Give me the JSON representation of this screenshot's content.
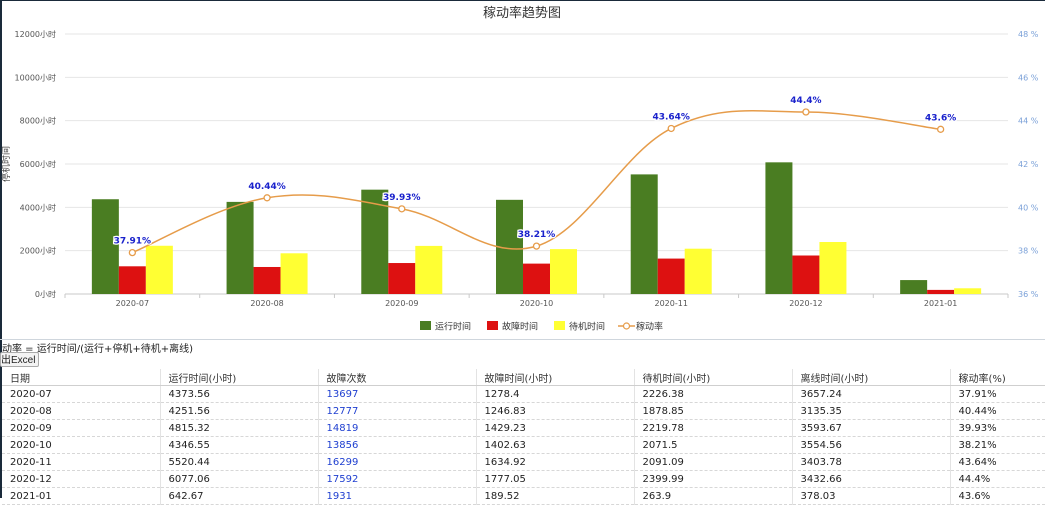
{
  "chart_data": {
    "type": "bar",
    "title": "稼动率趋势图",
    "ylabel": "停机时间",
    "ylim": [
      0,
      12000
    ],
    "y_ticks": [
      "0小时",
      "2000小时",
      "4000小时",
      "6000小时",
      "8000小时",
      "10000小时",
      "12000小时"
    ],
    "y2lim": [
      36,
      48
    ],
    "y2_ticks": [
      "36 %",
      "38 %",
      "40 %",
      "42 %",
      "44 %",
      "46 %",
      "48 %"
    ],
    "categories": [
      "2020-07",
      "2020-08",
      "2020-09",
      "2020-10",
      "2020-11",
      "2020-12",
      "2021-01"
    ],
    "series": [
      {
        "name": "运行时间",
        "kind": "bar",
        "color": "#4a7d22",
        "values": [
          4373.56,
          4251.56,
          4815.32,
          4346.55,
          5520.44,
          6077.06,
          642.67
        ]
      },
      {
        "name": "故障时间",
        "kind": "bar",
        "color": "#dd1111",
        "values": [
          1278.4,
          1246.83,
          1429.23,
          1402.63,
          1634.92,
          1777.05,
          189.52
        ]
      },
      {
        "name": "待机时间",
        "kind": "bar",
        "color": "#ffff33",
        "values": [
          2226.38,
          1878.85,
          2219.78,
          2071.5,
          2091.09,
          2399.99,
          263.9
        ]
      },
      {
        "name": "稼动率",
        "kind": "line",
        "axis": "right",
        "color": "#e69c4a",
        "values": [
          37.91,
          40.44,
          39.93,
          38.21,
          43.64,
          44.4,
          43.6
        ],
        "labels": [
          "37.91%",
          "40.44%",
          "39.93%",
          "38.21%",
          "43.64%",
          "44.4%",
          "43.6%"
        ]
      }
    ],
    "grid": true,
    "legend": "bottom-center"
  },
  "formula": "动率 = 运行时间/(运行+停机+待机+离线)",
  "export_label": "出Excel",
  "table": {
    "headers": [
      "日期",
      "运行时间(小时)",
      "故障次数",
      "故障时间(小时)",
      "待机时间(小时)",
      "离线时间(小时)",
      "稼动率(%)"
    ],
    "rows": [
      [
        "2020-07",
        "4373.56",
        "13697",
        "1278.4",
        "2226.38",
        "3657.24",
        "37.91%"
      ],
      [
        "2020-08",
        "4251.56",
        "12777",
        "1246.83",
        "1878.85",
        "3135.35",
        "40.44%"
      ],
      [
        "2020-09",
        "4815.32",
        "14819",
        "1429.23",
        "2219.78",
        "3593.67",
        "39.93%"
      ],
      [
        "2020-10",
        "4346.55",
        "13856",
        "1402.63",
        "2071.5",
        "3554.56",
        "38.21%"
      ],
      [
        "2020-11",
        "5520.44",
        "16299",
        "1634.92",
        "2091.09",
        "3403.78",
        "43.64%"
      ],
      [
        "2020-12",
        "6077.06",
        "17592",
        "1777.05",
        "2399.99",
        "3432.66",
        "44.4%"
      ],
      [
        "2021-01",
        "642.67",
        "1931",
        "189.52",
        "263.9",
        "378.03",
        "43.6%"
      ]
    ]
  }
}
